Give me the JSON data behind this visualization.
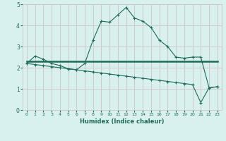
{
  "xlabel": "Humidex (Indice chaleur)",
  "ylabel": "",
  "xlim": [
    -0.5,
    23.5
  ],
  "ylim": [
    0,
    5
  ],
  "xticks": [
    0,
    1,
    2,
    3,
    4,
    5,
    6,
    7,
    8,
    9,
    10,
    11,
    12,
    13,
    14,
    15,
    16,
    17,
    18,
    19,
    20,
    21,
    22,
    23
  ],
  "yticks": [
    0,
    1,
    2,
    3,
    4,
    5
  ],
  "bg_color": "#d8f0ee",
  "line_color": "#1a6b5a",
  "grid_color": "#d0c8c8",
  "curve1_x": [
    0,
    1,
    2,
    3,
    4,
    5,
    6,
    7,
    8,
    9,
    10,
    11,
    12,
    13,
    14,
    15,
    16,
    17,
    18,
    19,
    20,
    21,
    22,
    23
  ],
  "curve1_y": [
    2.2,
    2.55,
    2.4,
    2.2,
    2.1,
    1.95,
    1.9,
    2.2,
    3.3,
    4.2,
    4.15,
    4.5,
    4.85,
    4.35,
    4.2,
    3.9,
    3.3,
    3.0,
    2.5,
    2.45,
    2.5,
    2.5,
    1.05,
    1.1
  ],
  "curve2_x": [
    0,
    20,
    21,
    22,
    23
  ],
  "curve2_y": [
    2.3,
    2.3,
    2.3,
    2.3,
    2.3
  ],
  "curve3_x": [
    0,
    1,
    2,
    3,
    4,
    5,
    6,
    7,
    8,
    9,
    10,
    11,
    12,
    13,
    14,
    15,
    16,
    17,
    18,
    19,
    20,
    21,
    22,
    23
  ],
  "curve3_y": [
    2.2,
    2.15,
    2.1,
    2.05,
    2.0,
    1.95,
    1.9,
    1.85,
    1.8,
    1.75,
    1.7,
    1.65,
    1.6,
    1.55,
    1.5,
    1.45,
    1.4,
    1.35,
    1.3,
    1.25,
    1.2,
    0.35,
    1.05,
    1.1
  ]
}
